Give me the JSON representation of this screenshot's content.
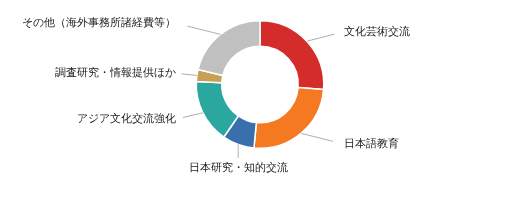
{
  "chart_data": {
    "type": "doughnut",
    "categories": [
      "文化芸術交流",
      "日本語教育",
      "日本研究・知的交流",
      "アジア文化交流強化",
      "調査研究・情報提供ほか",
      "その他（海外事務所諸経費等）"
    ],
    "values": [
      26,
      25,
      8,
      16,
      3,
      21
    ],
    "colors": [
      "#d42b2b",
      "#f47920",
      "#3a6fad",
      "#2aa8a0",
      "#c8a055",
      "#c0c0c0"
    ]
  }
}
